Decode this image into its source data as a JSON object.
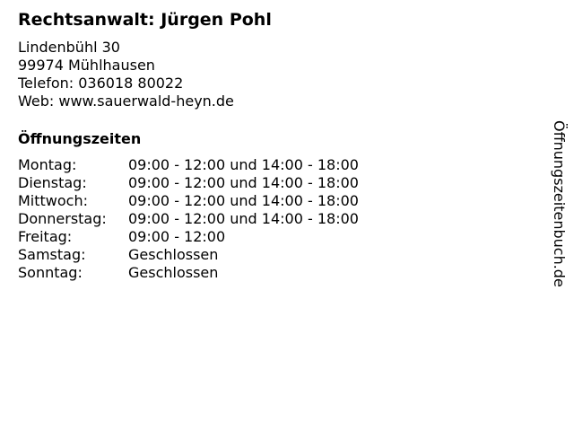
{
  "title": "Rechtsanwalt: Jürgen Pohl",
  "address": {
    "street": "Lindenbühl 30",
    "city": "99974 Mühlhausen",
    "phone": "Telefon: 036018 80022",
    "web": "Web: www.sauerwald-heyn.de"
  },
  "hours_heading": "Öffnungszeiten",
  "hours": [
    {
      "day": "Montag:",
      "time": "09:00 - 12:00 und 14:00 - 18:00"
    },
    {
      "day": "Dienstag:",
      "time": "09:00 - 12:00 und 14:00 - 18:00"
    },
    {
      "day": "Mittwoch:",
      "time": "09:00 - 12:00 und 14:00 - 18:00"
    },
    {
      "day": "Donnerstag:",
      "time": "09:00 - 12:00 und 14:00 - 18:00"
    },
    {
      "day": "Freitag:",
      "time": "09:00 - 12:00"
    },
    {
      "day": "Samstag:",
      "time": "Geschlossen"
    },
    {
      "day": "Sonntag:",
      "time": "Geschlossen"
    }
  ],
  "side_label": "Öffnungszeitenbuch.de"
}
